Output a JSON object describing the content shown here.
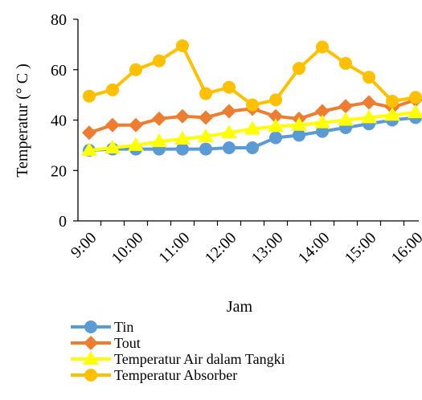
{
  "chart_data": {
    "type": "line",
    "title": "",
    "xlabel": "Jam",
    "ylabel": "Temperatur (° C )",
    "ylim": [
      0,
      80
    ],
    "yticks": [
      0,
      20,
      40,
      60,
      80
    ],
    "categories": [
      "9:00",
      "9:30",
      "10:00",
      "10:30",
      "11:00",
      "11:30",
      "12:00",
      "12:30",
      "13:00",
      "13:30",
      "14:00",
      "14:30",
      "15:00",
      "15:30",
      "16:00"
    ],
    "x_tick_labels": [
      "9:00",
      "10:00",
      "11:00",
      "12:00",
      "13:00",
      "14:00",
      "15:00",
      "16:00"
    ],
    "grid": false,
    "legend_position": "bottom",
    "series": [
      {
        "name": "Tin",
        "color": "#5B9BD5",
        "marker": "circle",
        "values": [
          28,
          28.5,
          28.5,
          28.5,
          28.5,
          28.5,
          29,
          29,
          33,
          34,
          35.5,
          37,
          38.5,
          40,
          41
        ]
      },
      {
        "name": "Tout",
        "color": "#ED7D31",
        "marker": "diamond",
        "values": [
          35,
          38,
          38,
          40.5,
          41.5,
          41,
          43.5,
          44.5,
          41.5,
          40.5,
          43.5,
          45.5,
          47,
          45,
          48
        ]
      },
      {
        "name": "Temperatur Air dalam Tangki",
        "color": "#FFFF00",
        "marker": "triangle",
        "values": [
          28,
          29,
          30,
          31.5,
          32.5,
          33.5,
          35,
          36.5,
          37.5,
          38,
          39,
          40,
          41,
          42,
          43
        ]
      },
      {
        "name": "Temperatur Absorber",
        "color": "#FFC000",
        "marker": "circle",
        "values": [
          49.5,
          52,
          60,
          63.5,
          69.5,
          50.5,
          53,
          46,
          48,
          60.5,
          69,
          62.5,
          57,
          47.5,
          49
        ]
      }
    ]
  }
}
